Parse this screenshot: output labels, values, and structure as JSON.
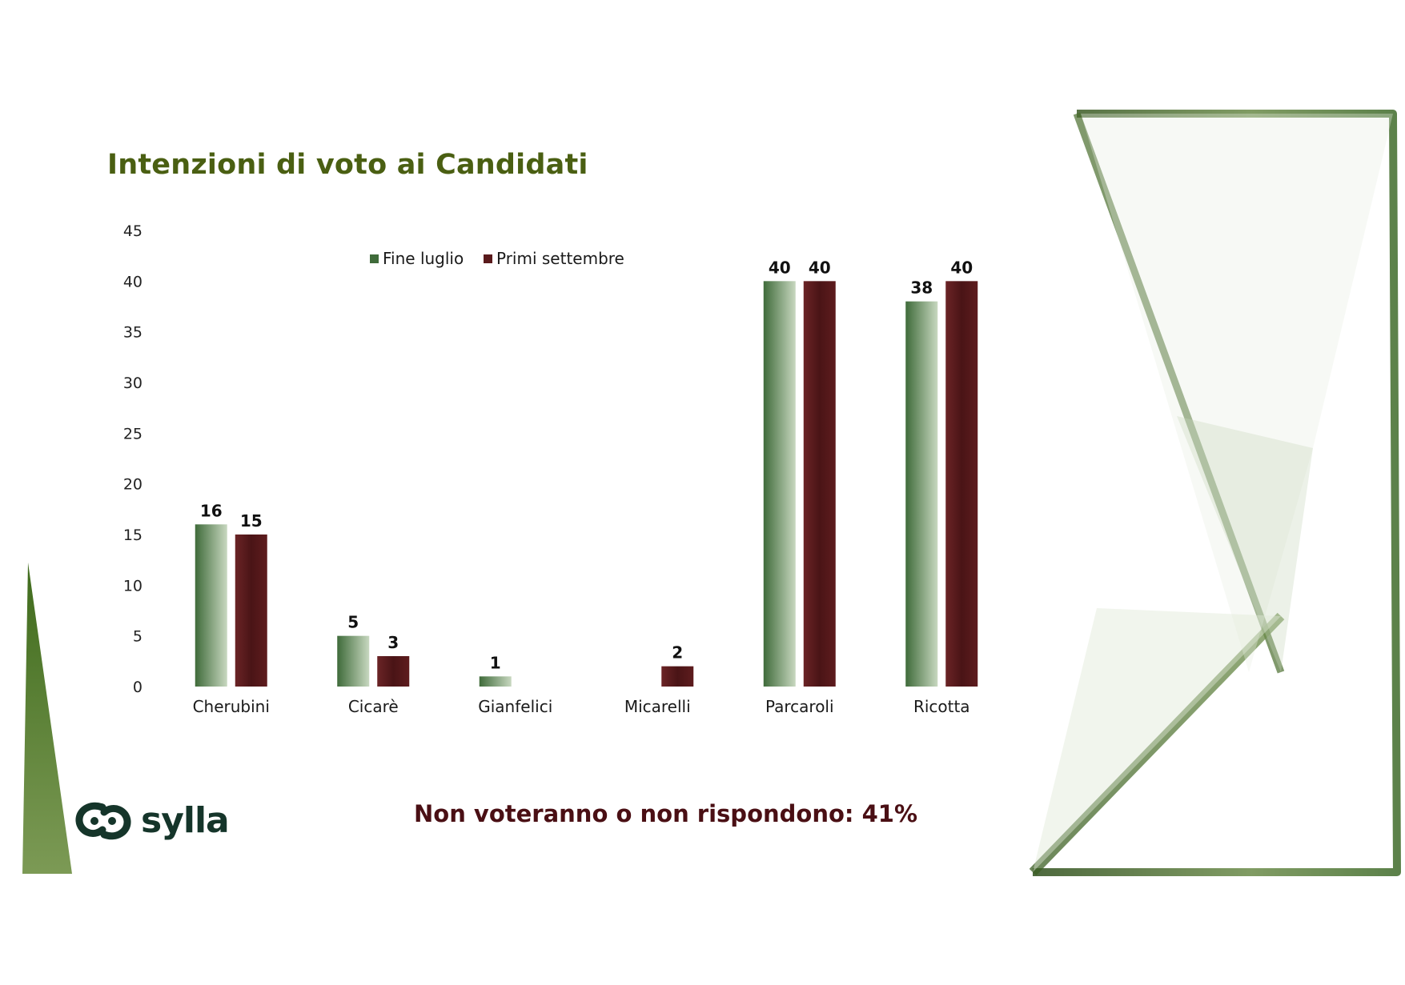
{
  "chart_data": {
    "type": "bar",
    "title": "Intenzioni di voto ai Candidati",
    "categories": [
      "Cherubini",
      "Cicarè",
      "Gianfelici",
      "Micarelli",
      "Parcaroli",
      "Ricotta"
    ],
    "series": [
      {
        "name": "Fine luglio",
        "values": [
          16,
          5,
          1,
          null,
          40,
          38
        ],
        "labels": [
          "16",
          "5",
          "1",
          "",
          "40",
          "38"
        ],
        "color": "#3f6b3a"
      },
      {
        "name": "Primi settembre",
        "values": [
          15,
          3,
          null,
          2,
          40,
          40
        ],
        "labels": [
          "15",
          "3",
          "",
          "2",
          "40",
          "40"
        ],
        "color": "#5a1a1c"
      }
    ],
    "yticks": [
      "0",
      "5",
      "10",
      "15",
      "20",
      "25",
      "30",
      "35",
      "40",
      "45"
    ],
    "ylim": [
      0,
      45
    ],
    "grid": false,
    "legend_position": "top-center"
  },
  "footnote": "Non voteranno o non rispondono: 41%",
  "logo": {
    "text": "sylla",
    "icon": "sylla-logo-icon"
  },
  "colors": {
    "title": "#4a5f12",
    "footnote": "#4a0f14",
    "green_series": "#3f6b3a",
    "maroon_series": "#5a1a1c"
  }
}
